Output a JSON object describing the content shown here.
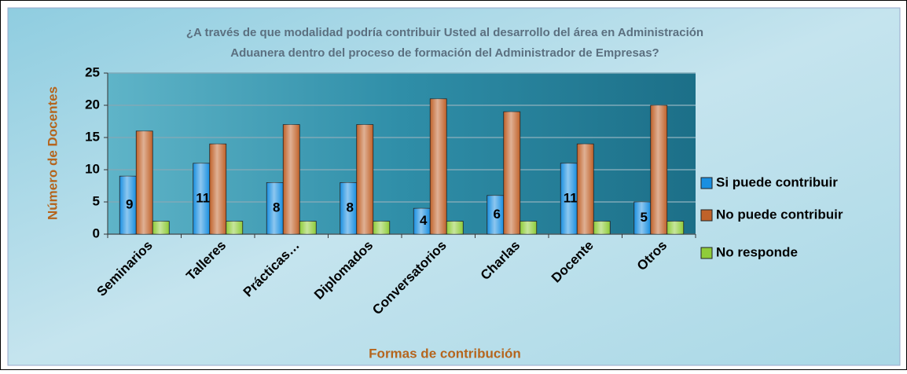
{
  "chart_data": {
    "type": "bar",
    "title": [
      "¿A través de que modalidad podría contribuir Usted al desarrollo del área en Administración",
      "Aduanera dentro del proceso de formación del Administrador de Empresas?"
    ],
    "x_label": "Formas de contribución",
    "y_label": "Número de Docentes",
    "categories": [
      "Seminarios",
      "Talleres",
      "Prácticas…",
      "Diplomados",
      "Conversatorios",
      "Charlas",
      "Docente",
      "Otros"
    ],
    "series": [
      {
        "name": "Si puede contribuir",
        "color": "#1a8fe0",
        "values": [
          9,
          11,
          8,
          8,
          4,
          6,
          11,
          5
        ],
        "data_labels": true
      },
      {
        "name": "No puede contribuir",
        "color": "#c0622a",
        "values": [
          16,
          14,
          17,
          17,
          21,
          19,
          14,
          20
        ]
      },
      {
        "name": "No responde",
        "color": "#8fcc3a",
        "values": [
          2,
          2,
          2,
          2,
          2,
          2,
          2,
          2
        ]
      }
    ],
    "ylim": [
      0,
      25
    ],
    "yticks": [
      0,
      5,
      10,
      15,
      20,
      25
    ],
    "grid": true,
    "legend": "right"
  }
}
